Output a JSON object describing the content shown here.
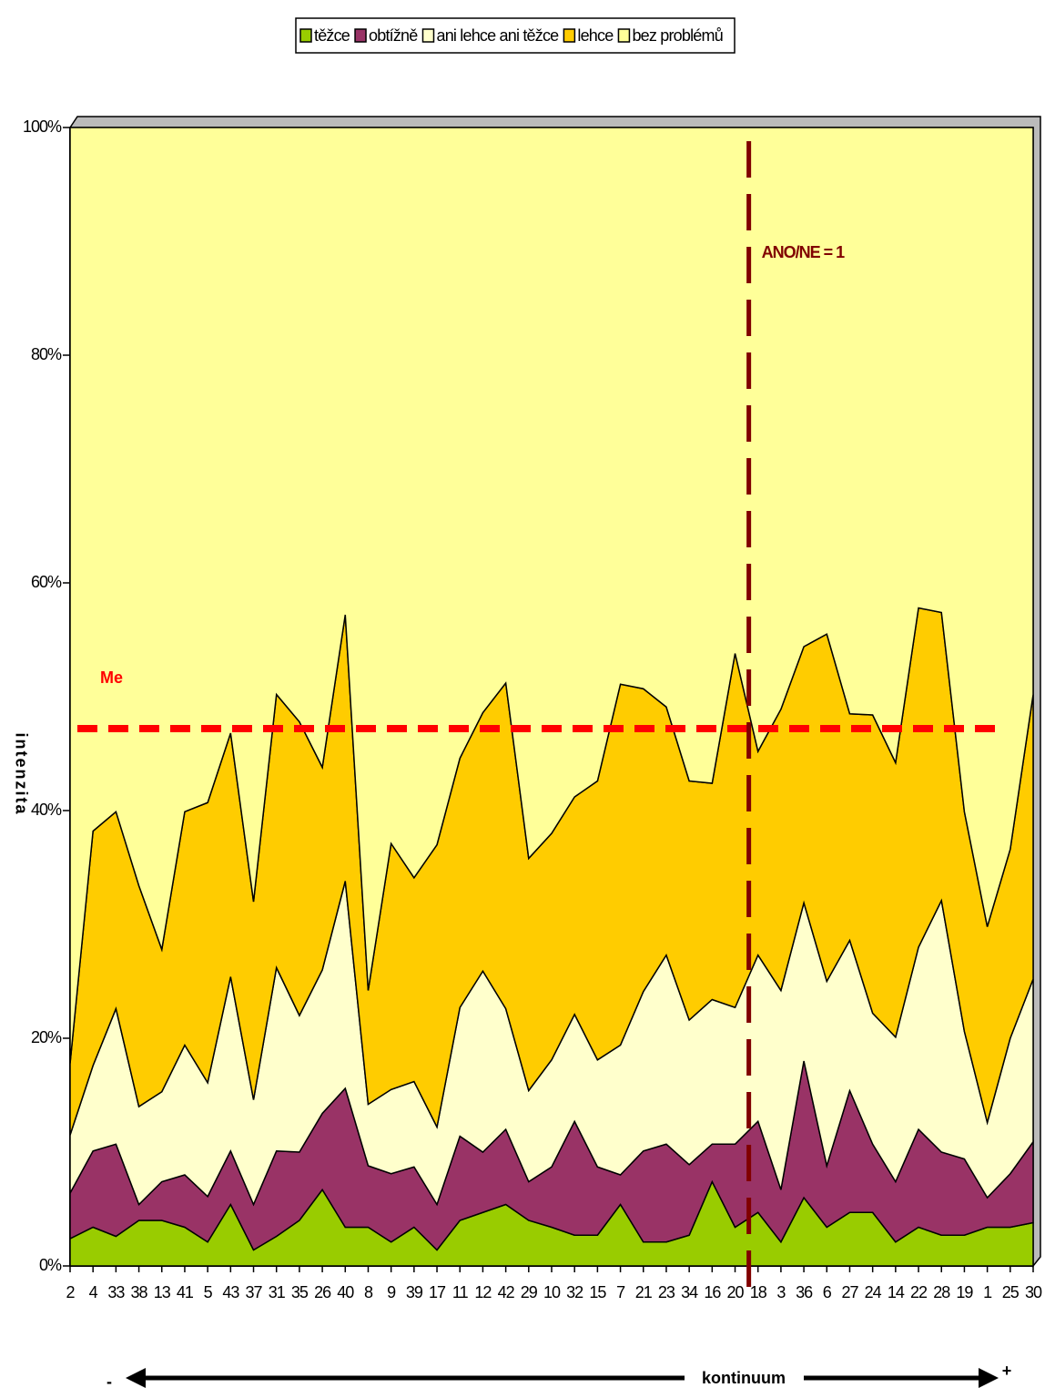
{
  "chart_data": {
    "type": "stacked_area",
    "y_label": "intenzita",
    "categories": [
      "2",
      "4",
      "33",
      "38",
      "13",
      "41",
      "5",
      "43",
      "37",
      "31",
      "35",
      "26",
      "40",
      "8",
      "9",
      "39",
      "17",
      "11",
      "12",
      "42",
      "29",
      "10",
      "32",
      "15",
      "7",
      "21",
      "23",
      "34",
      "16",
      "20",
      "18",
      "3",
      "36",
      "6",
      "27",
      "24",
      "14",
      "22",
      "28",
      "19",
      "1",
      "25",
      "30"
    ],
    "series": [
      {
        "name": "těžce",
        "color": "#99cc00",
        "values": [
          2.4,
          3.4,
          2.6,
          4.0,
          4.0,
          3.4,
          2.1,
          5.4,
          1.4,
          2.6,
          4.0,
          6.7,
          3.4,
          3.4,
          2.1,
          3.4,
          1.4,
          4.0,
          4.7,
          5.4,
          4.0,
          3.4,
          2.7,
          2.7,
          5.4,
          2.1,
          2.1,
          2.7,
          7.4,
          3.4,
          4.7,
          2.1,
          6.0,
          3.4,
          4.7,
          4.7,
          2.1,
          3.4,
          2.7,
          2.7,
          3.4,
          3.4,
          3.8
        ]
      },
      {
        "name": "obtížně",
        "color": "#993366",
        "values": [
          4.0,
          6.7,
          8.1,
          1.4,
          3.4,
          4.6,
          4.0,
          4.7,
          4.0,
          7.5,
          6.0,
          6.7,
          12.2,
          5.4,
          6.0,
          5.3,
          4.0,
          7.4,
          5.3,
          6.6,
          3.4,
          5.3,
          10.0,
          6.0,
          2.6,
          8.0,
          8.6,
          6.2,
          3.3,
          7.3,
          8.0,
          4.6,
          12.0,
          5.4,
          10.7,
          6.0,
          5.3,
          8.6,
          7.3,
          6.7,
          2.6,
          4.7,
          7.1
        ]
      },
      {
        "name": "ani lehce ani těžce",
        "color": "#ffffcc",
        "values": [
          5.1,
          7.5,
          11.9,
          8.6,
          7.9,
          11.4,
          10.0,
          15.3,
          9.2,
          16.1,
          12.0,
          12.6,
          18.2,
          5.4,
          7.4,
          7.5,
          6.8,
          11.3,
          15.9,
          10.6,
          8.0,
          9.4,
          9.4,
          9.4,
          11.4,
          14.0,
          16.6,
          12.7,
          12.7,
          12.0,
          14.6,
          17.5,
          13.9,
          16.2,
          13.2,
          11.5,
          12.7,
          16.0,
          22.1,
          11.2,
          6.6,
          11.9,
          14.3
        ]
      },
      {
        "name": "lehce",
        "color": "#ffcc00",
        "values": [
          6.3,
          20.6,
          17.3,
          19.4,
          12.5,
          20.5,
          24.6,
          21.4,
          17.4,
          24.0,
          25.8,
          17.8,
          23.4,
          10.0,
          21.6,
          17.9,
          24.8,
          21.9,
          22.7,
          28.6,
          20.4,
          19.9,
          19.1,
          24.5,
          31.7,
          26.6,
          21.8,
          21.0,
          19.0,
          31.1,
          17.9,
          24.7,
          22.5,
          30.5,
          19.9,
          26.2,
          24.1,
          29.8,
          25.3,
          19.3,
          17.2,
          16.6,
          25.0
        ]
      },
      {
        "name": "bez problémů",
        "color": "#ffff99",
        "values": [
          82.2,
          61.8,
          60.1,
          66.6,
          72.2,
          60.1,
          59.3,
          53.2,
          68.0,
          49.8,
          52.2,
          56.2,
          42.8,
          75.8,
          62.9,
          65.9,
          63.0,
          55.4,
          51.4,
          48.8,
          64.2,
          62.0,
          58.8,
          57.4,
          48.9,
          49.3,
          50.9,
          57.4,
          57.6,
          46.2,
          54.8,
          51.1,
          45.6,
          44.5,
          51.5,
          51.6,
          55.8,
          42.2,
          42.6,
          60.1,
          70.2,
          63.4,
          49.8
        ]
      }
    ],
    "ylim": [
      0,
      100
    ],
    "yticks": [
      {
        "value": 0,
        "label": "0%"
      },
      {
        "value": 20,
        "label": "20%"
      },
      {
        "value": 40,
        "label": "40%"
      },
      {
        "value": 60,
        "label": "60%"
      },
      {
        "value": 80,
        "label": "80%"
      },
      {
        "value": 100,
        "label": "100%"
      }
    ],
    "median_line": {
      "label": "Me",
      "value": 47.2,
      "color": "#ff0000"
    },
    "vertical_line": {
      "label": "ANO/NE = 1",
      "x_position": 29.6,
      "color": "#800000"
    },
    "x_axis": {
      "label": "kontinuum",
      "left": "-",
      "right": "+"
    },
    "legend": "top"
  }
}
